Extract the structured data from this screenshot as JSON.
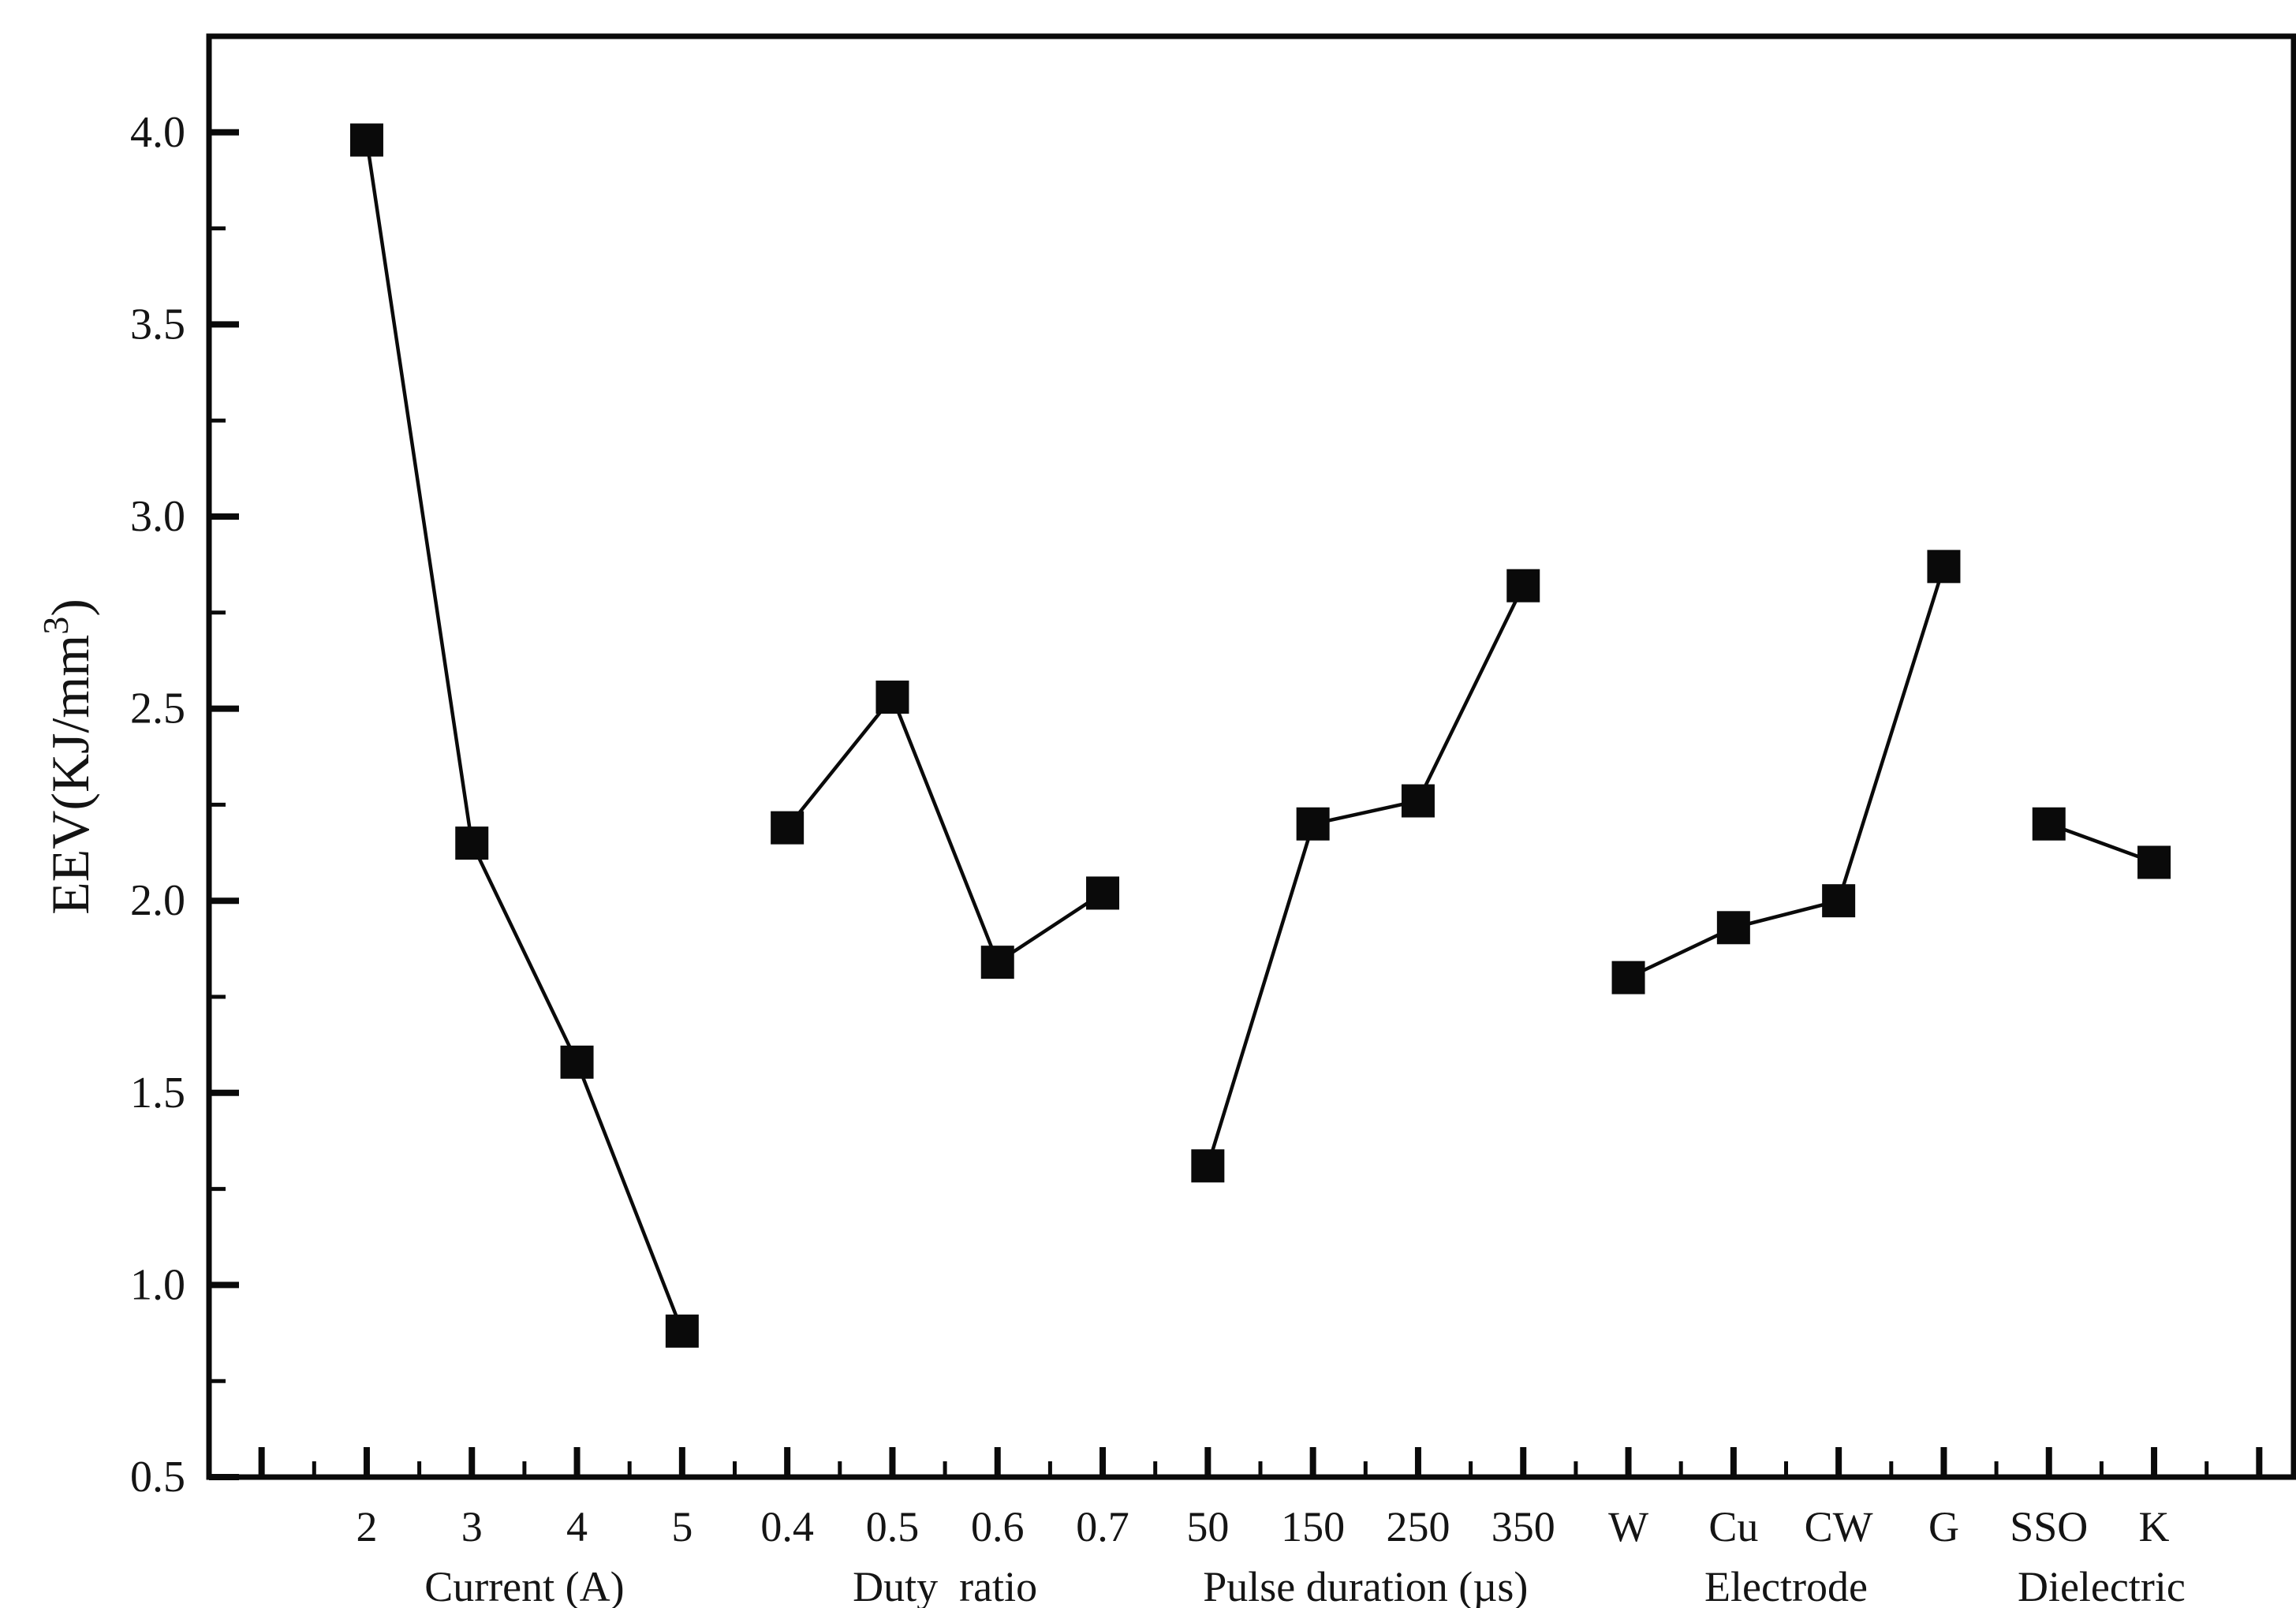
{
  "chart_data": {
    "type": "line",
    "title": "",
    "subtitle": "",
    "ylabel": "EEV(KJ/mm³)",
    "ylabel_parts": [
      "EEV(KJ/mm",
      "3",
      ")"
    ],
    "xlabel": "",
    "ylim": [
      0.5,
      4.25
    ],
    "y_major_ticks": [
      0.5,
      1.0,
      1.5,
      2.0,
      2.5,
      3.0,
      3.5,
      4.0
    ],
    "y_tick_labels": [
      "0.5",
      "1.0",
      "1.5",
      "2.0",
      "2.5",
      "3.0",
      "3.5",
      "4.0"
    ],
    "y_minor_step": 0.25,
    "grid": false,
    "legend": null,
    "marker": "filled-square",
    "colors": {
      "line": "#0a0a0a",
      "marker": "#0a0a0a",
      "axis": "#0a0a0a",
      "text": "#141414",
      "background": "#ffffff"
    },
    "groups": [
      {
        "label": "Current (A)",
        "categories": [
          "2",
          "3",
          "4",
          "5"
        ],
        "values": [
          3.98,
          2.15,
          1.58,
          0.88
        ]
      },
      {
        "label": "Duty  ratio",
        "categories": [
          "0.4",
          "0.5",
          "0.6",
          "0.7"
        ],
        "values": [
          2.19,
          2.53,
          1.84,
          2.02
        ]
      },
      {
        "label": "Pulse duration (µs)",
        "categories": [
          "50",
          "150",
          "250",
          "350"
        ],
        "values": [
          1.31,
          2.2,
          2.26,
          2.82
        ]
      },
      {
        "label": "Electrode",
        "categories": [
          "W",
          "Cu",
          "CW",
          "G"
        ],
        "values": [
          1.8,
          1.93,
          2.0,
          2.87
        ]
      },
      {
        "label": "Dielectric",
        "categories": [
          "SSO",
          "K"
        ],
        "values": [
          2.2,
          2.1
        ]
      }
    ]
  }
}
